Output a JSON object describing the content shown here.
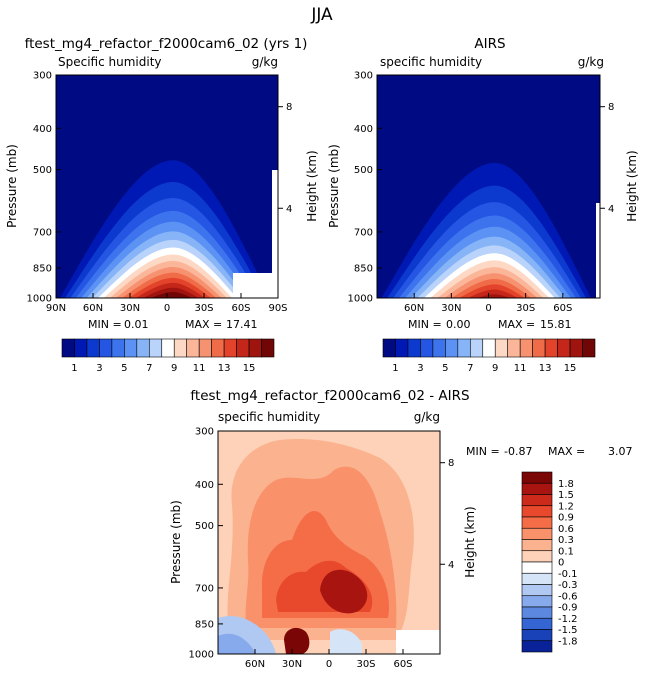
{
  "page_title": "JJA",
  "chart_data": [
    {
      "type": "contour",
      "title": "ftest_mg4_refactor_f2000cam6_02 (yrs 1)",
      "variable_label": "Specific humidity",
      "units_label": "g/kg",
      "ylabel": "Pressure (mb)",
      "ylabel_right": "Height (km)",
      "x_ticks": [
        "90N",
        "60N",
        "30N",
        "0",
        "30S",
        "60S",
        "90S"
      ],
      "y_ticks": [
        "300",
        "400",
        "500",
        "700",
        "850",
        "1000"
      ],
      "height_ticks": [
        "8",
        "4"
      ],
      "stats": {
        "min_label": "MIN =",
        "min_value": "0.01",
        "max_label": "MAX =",
        "max_value": "17.41"
      },
      "peak_lat": -5,
      "peak_value": 17.41,
      "colorbar": {
        "tick_labels": [
          "1",
          "3",
          "5",
          "7",
          "9",
          "11",
          "13",
          "15"
        ],
        "colors": [
          "#000a82",
          "#0019b4",
          "#0c3acf",
          "#2456e3",
          "#3d74ee",
          "#5b92f4",
          "#86b4f7",
          "#b9d3fa",
          "#ffffff",
          "#fdd8c4",
          "#fbb69a",
          "#f79271",
          "#f06b48",
          "#e2432a",
          "#c4271a",
          "#a01410",
          "#700606"
        ]
      }
    },
    {
      "type": "contour",
      "title": "AIRS",
      "variable_label": "specific humidity",
      "units_label": "g/kg",
      "ylabel": "Pressure (mb)",
      "ylabel_right": "Height (km)",
      "x_ticks": [
        "60N",
        "30N",
        "0",
        "30S",
        "60S"
      ],
      "y_ticks": [
        "300",
        "400",
        "500",
        "700",
        "850",
        "1000"
      ],
      "height_ticks": [
        "8",
        "4"
      ],
      "stats": {
        "min_label": "MIN =",
        "min_value": "0.00",
        "max_label": "MAX =",
        "max_value": "15.81"
      },
      "peak_lat": -5,
      "peak_value": 15.81,
      "colorbar": {
        "tick_labels": [
          "1",
          "3",
          "5",
          "7",
          "9",
          "11",
          "13",
          "15"
        ],
        "colors": [
          "#000a82",
          "#0019b4",
          "#0c3acf",
          "#2456e3",
          "#3d74ee",
          "#5b92f4",
          "#86b4f7",
          "#b9d3fa",
          "#ffffff",
          "#fdd8c4",
          "#fbb69a",
          "#f79271",
          "#f06b48",
          "#e2432a",
          "#c4271a",
          "#a01410",
          "#700606"
        ]
      }
    },
    {
      "type": "contour",
      "title": "ftest_mg4_refactor_f2000cam6_02 - AIRS",
      "variable_label": "specific humidity",
      "units_label": "g/kg",
      "ylabel": "Pressure (mb)",
      "ylabel_right": "Height (km)",
      "x_ticks": [
        "60N",
        "30N",
        "0",
        "30S",
        "60S"
      ],
      "y_ticks": [
        "300",
        "400",
        "500",
        "700",
        "850",
        "1000"
      ],
      "height_ticks": [
        "8",
        "4"
      ],
      "stats": {
        "min_label": "MIN =",
        "min_value": "-0.87",
        "max_label": "MAX =",
        "max_value": "3.07"
      },
      "colorbar": {
        "tick_labels": [
          "1.8",
          "1.5",
          "1.2",
          "0.9",
          "0.6",
          "0.3",
          "0.1",
          "0",
          "-0.1",
          "-0.3",
          "-0.6",
          "-0.9",
          "-1.2",
          "-1.5",
          "-1.8"
        ],
        "colors": [
          "#7a0606",
          "#a81410",
          "#cc2a1a",
          "#e8492c",
          "#f46d47",
          "#f9916a",
          "#fbb28e",
          "#fdd2b8",
          "#ffffff",
          "#d6e4f8",
          "#b0c9f2",
          "#86aaeb",
          "#5d88e0",
          "#3565d2",
          "#1942b8",
          "#0a2298"
        ]
      }
    }
  ]
}
